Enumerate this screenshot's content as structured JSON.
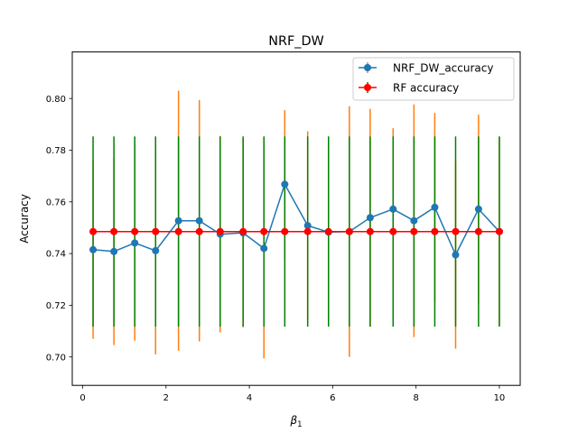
{
  "chart_data": {
    "type": "line",
    "title": "NRF_DW",
    "xlabel": "β",
    "xlabel_subscript": "1",
    "ylabel": "Accuracy",
    "xlim": [
      -0.25,
      10.5
    ],
    "ylim": [
      0.689,
      0.818
    ],
    "xticks": [
      0,
      2,
      4,
      6,
      8,
      10
    ],
    "yticks": [
      0.7,
      0.72,
      0.74,
      0.76,
      0.78,
      0.8
    ],
    "grid": false,
    "legend_position": "top-right",
    "x": [
      0.25,
      0.75,
      1.25,
      1.75,
      2.3,
      2.8,
      3.3,
      3.85,
      4.35,
      4.85,
      5.4,
      5.9,
      6.4,
      6.9,
      7.45,
      7.95,
      8.45,
      8.95,
      9.5,
      10.0
    ],
    "series": [
      {
        "name": "NRF_DW_accuracy",
        "color": "#1f77b4",
        "values": [
          0.7415,
          0.7408,
          0.7441,
          0.7411,
          0.7527,
          0.7527,
          0.7475,
          0.748,
          0.742,
          0.7668,
          0.7508,
          0.7483,
          0.7485,
          0.7539,
          0.7572,
          0.7527,
          0.7579,
          0.7395,
          0.7572,
          0.7485
        ],
        "error": [
          0.0345,
          0.0362,
          0.0378,
          0.0401,
          0.0503,
          0.0467,
          0.038,
          0.0365,
          0.0426,
          0.0287,
          0.0365,
          0.0365,
          0.0485,
          0.0421,
          0.0313,
          0.045,
          0.0365,
          0.0363,
          0.0365,
          0.0365
        ],
        "error_color": "#ff7f0e"
      },
      {
        "name": "RF accuracy",
        "color": "#ff0000",
        "values": [
          0.7485,
          0.7485,
          0.7485,
          0.7485,
          0.7485,
          0.7485,
          0.7485,
          0.7485,
          0.7485,
          0.7485,
          0.7485,
          0.7485,
          0.7485,
          0.7485,
          0.7485,
          0.7485,
          0.7485,
          0.7485,
          0.7485,
          0.7485
        ],
        "error": [
          0.0368,
          0.0368,
          0.0368,
          0.0368,
          0.0368,
          0.0368,
          0.0368,
          0.0368,
          0.0368,
          0.0368,
          0.0368,
          0.0368,
          0.0368,
          0.0368,
          0.0368,
          0.0368,
          0.0368,
          0.0368,
          0.0368,
          0.0368
        ],
        "error_color": "#008000"
      }
    ]
  }
}
